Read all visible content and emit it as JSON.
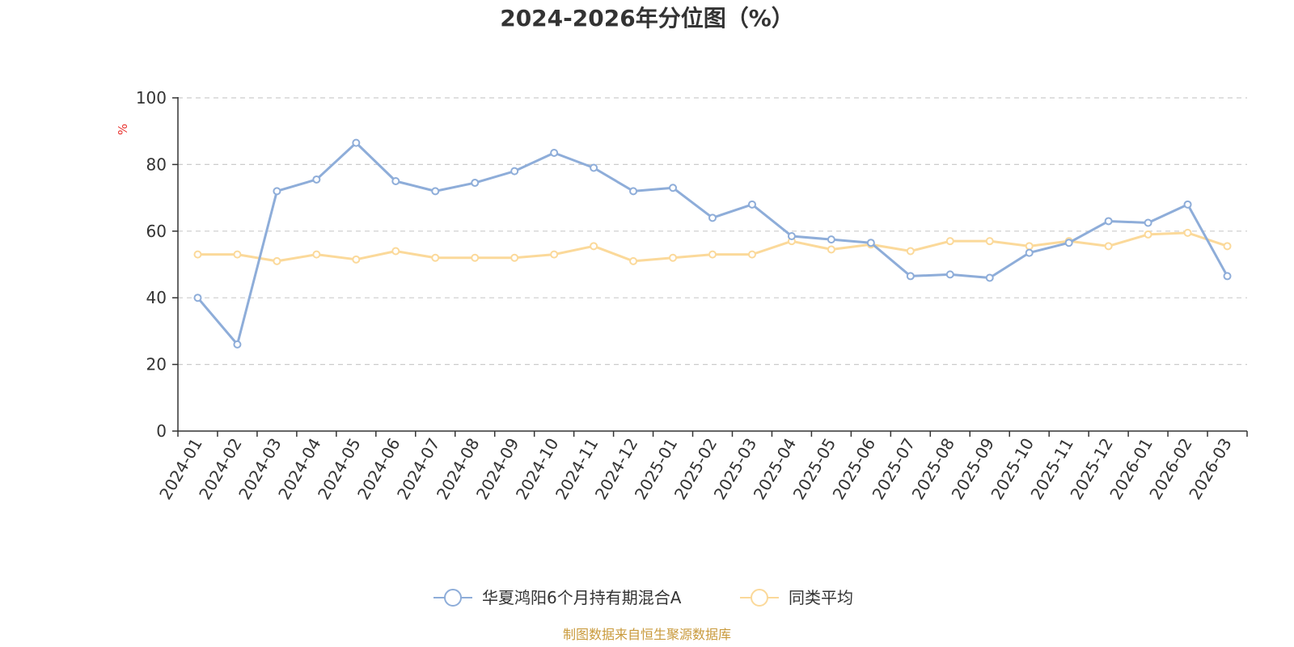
{
  "chart_data": {
    "type": "line",
    "title": "2024-2026年分位图（%）",
    "ylabel": "%",
    "ylim": [
      0,
      100
    ],
    "yticks": [
      0,
      20,
      40,
      60,
      80,
      100
    ],
    "grid": true,
    "legend_position": "bottom-center",
    "categories": [
      "2024-01",
      "2024-02",
      "2024-03",
      "2024-04",
      "2024-05",
      "2024-06",
      "2024-07",
      "2024-08",
      "2024-09",
      "2024-10",
      "2024-11",
      "2024-12",
      "2025-01",
      "2025-02",
      "2025-03",
      "2025-04",
      "2025-05",
      "2025-06",
      "2025-07",
      "2025-08",
      "2025-09",
      "2025-10",
      "2025-11",
      "2025-12",
      "2026-01",
      "2026-02",
      "2026-03"
    ],
    "series": [
      {
        "name": "华夏鸿阳6个月持有期混合A",
        "color": "#8eadd9",
        "values": [
          40,
          26,
          72,
          75.5,
          86.5,
          75,
          72,
          74.5,
          78,
          83.5,
          79,
          72,
          73,
          64,
          68,
          58.5,
          57.5,
          56.5,
          46.5,
          47,
          46,
          53.5,
          56.5,
          63,
          62.5,
          68,
          46.5
        ]
      },
      {
        "name": "同类平均",
        "color": "#fbd99a",
        "values": [
          53,
          53,
          51,
          53,
          51.5,
          54,
          52,
          52,
          52,
          53,
          55.5,
          51,
          52,
          53,
          53,
          57,
          54.5,
          56,
          54,
          57,
          57,
          55.5,
          57,
          55.5,
          59,
          59.5,
          55.5
        ]
      }
    ]
  },
  "source": {
    "text": "制图数据来自恒生聚源数据库",
    "color": "#c99a3c"
  },
  "unit_color": "#e8322e"
}
